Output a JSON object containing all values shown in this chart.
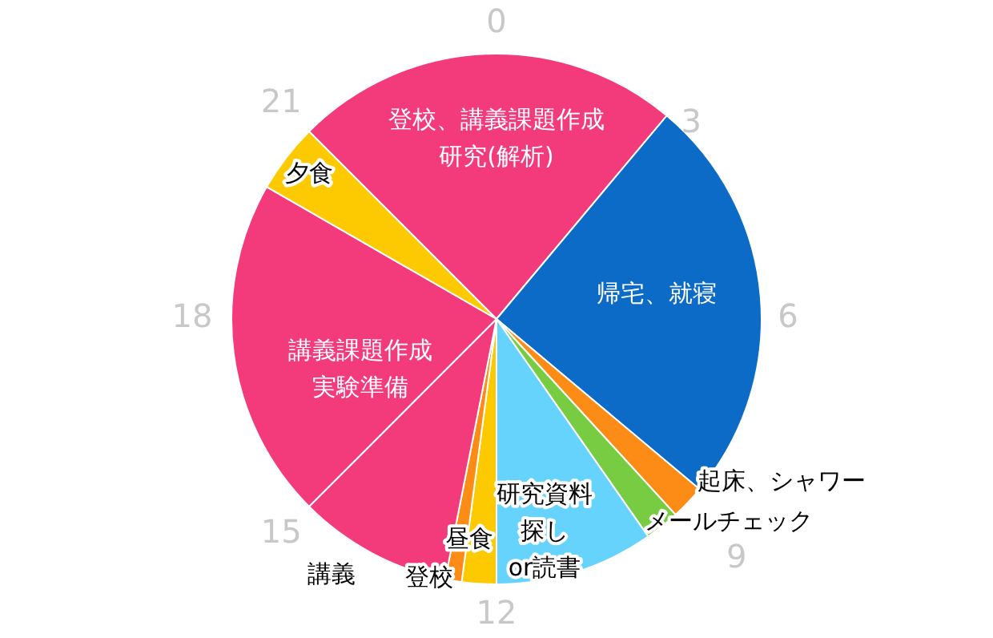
{
  "chart_data": {
    "type": "pie",
    "categories": [
      "登校、講義課題作成研究(解析)",
      "帰宅、就寝",
      "起床、シャワー",
      "メールチェック",
      "研究資料探しor読書",
      "昼食",
      "登校",
      "講義",
      "講義課題作成実験準備",
      "夕食"
    ],
    "values": [
      23.6,
      25,
      2.1,
      2.1,
      9.7,
      2.1,
      1.0,
      9.4,
      20.8,
      4.2
    ],
    "colors": [
      "#f33b7c",
      "#0d6bc8",
      "#fd8c17",
      "#78cc42",
      "#66d3fd",
      "#fdc900",
      "#fd8c17",
      "#f33b7c",
      "#f33b7c",
      "#fdc900"
    ],
    "annotations": [
      "0",
      "3",
      "6",
      "9",
      "12",
      "15",
      "18",
      "21"
    ],
    "legend": false
  }
}
